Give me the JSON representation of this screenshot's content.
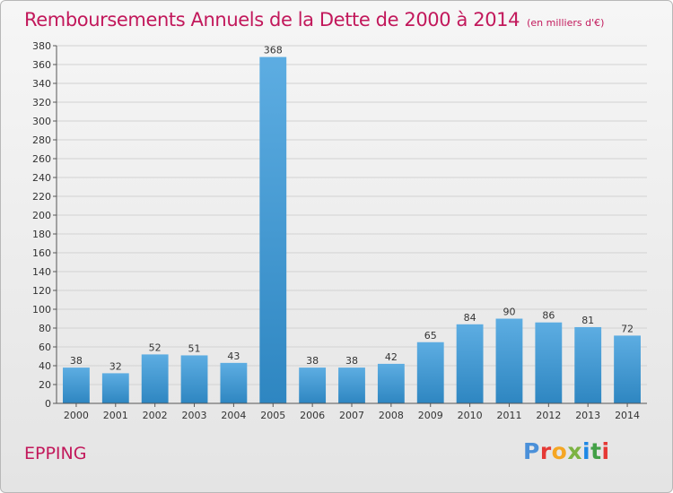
{
  "header": {
    "title": "Remboursements Annuels de la Dette de 2000 à 2014",
    "subtitle": "(en milliers d'€)"
  },
  "footer": {
    "commune": "EPPING",
    "logo_text": "Proxiti",
    "logo_colors": [
      "#4a90d9",
      "#e53935",
      "#f5a623",
      "#7cb342",
      "#1e88e5",
      "#43a047",
      "#e53935"
    ]
  },
  "chart_data": {
    "type": "bar",
    "title": "Remboursements Annuels de la Dette de 2000 à 2014",
    "subtitle": "(en milliers d'€)",
    "categories": [
      "2000",
      "2001",
      "2002",
      "2003",
      "2004",
      "2005",
      "2006",
      "2007",
      "2008",
      "2009",
      "2010",
      "2011",
      "2012",
      "2013",
      "2014"
    ],
    "values": [
      38,
      32,
      52,
      51,
      43,
      368,
      38,
      38,
      42,
      65,
      84,
      90,
      86,
      81,
      72
    ],
    "ylim": [
      0,
      380
    ],
    "yticks": [
      0,
      20,
      40,
      60,
      80,
      100,
      120,
      140,
      160,
      180,
      200,
      220,
      240,
      260,
      280,
      300,
      320,
      340,
      360,
      380
    ],
    "grid": true,
    "bar_color_top": "#5dade2",
    "bar_color_bottom": "#2e86c1"
  }
}
